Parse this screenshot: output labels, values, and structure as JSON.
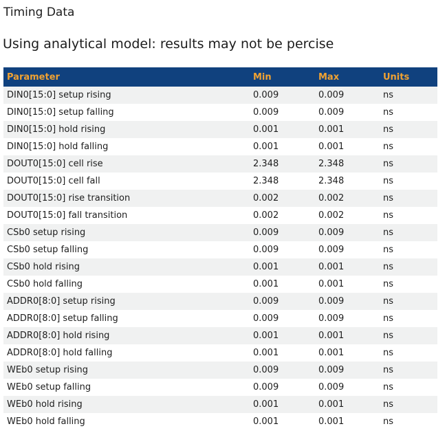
{
  "page": {
    "title": "Timing Data",
    "subtitle": "Using analytical model: results may not be percise"
  },
  "table": {
    "columns": [
      "Parameter",
      "Min",
      "Max",
      "Units"
    ],
    "units_common": "ns",
    "colors": {
      "header_bg": "#10417E",
      "header_text": "#F0A232",
      "row_alt_bg": "#F0F1F1",
      "row_text": "#1D1D1D"
    },
    "rows": [
      {
        "parameter": "DIN0[15:0] setup rising",
        "min": "0.009",
        "max": "0.009",
        "units": "ns"
      },
      {
        "parameter": "DIN0[15:0] setup falling",
        "min": "0.009",
        "max": "0.009",
        "units": "ns"
      },
      {
        "parameter": "DIN0[15:0] hold rising",
        "min": "0.001",
        "max": "0.001",
        "units": "ns"
      },
      {
        "parameter": "DIN0[15:0] hold falling",
        "min": "0.001",
        "max": "0.001",
        "units": "ns"
      },
      {
        "parameter": "DOUT0[15:0] cell rise",
        "min": "2.348",
        "max": "2.348",
        "units": "ns"
      },
      {
        "parameter": "DOUT0[15:0] cell fall",
        "min": "2.348",
        "max": "2.348",
        "units": "ns"
      },
      {
        "parameter": "DOUT0[15:0] rise transition",
        "min": "0.002",
        "max": "0.002",
        "units": "ns"
      },
      {
        "parameter": "DOUT0[15:0] fall transition",
        "min": "0.002",
        "max": "0.002",
        "units": "ns"
      },
      {
        "parameter": "CSb0 setup rising",
        "min": "0.009",
        "max": "0.009",
        "units": "ns"
      },
      {
        "parameter": "CSb0 setup falling",
        "min": "0.009",
        "max": "0.009",
        "units": "ns"
      },
      {
        "parameter": "CSb0 hold rising",
        "min": "0.001",
        "max": "0.001",
        "units": "ns"
      },
      {
        "parameter": "CSb0 hold falling",
        "min": "0.001",
        "max": "0.001",
        "units": "ns"
      },
      {
        "parameter": "ADDR0[8:0] setup rising",
        "min": "0.009",
        "max": "0.009",
        "units": "ns"
      },
      {
        "parameter": "ADDR0[8:0] setup falling",
        "min": "0.009",
        "max": "0.009",
        "units": "ns"
      },
      {
        "parameter": "ADDR0[8:0] hold rising",
        "min": "0.001",
        "max": "0.001",
        "units": "ns"
      },
      {
        "parameter": "ADDR0[8:0] hold falling",
        "min": "0.001",
        "max": "0.001",
        "units": "ns"
      },
      {
        "parameter": "WEb0 setup rising",
        "min": "0.009",
        "max": "0.009",
        "units": "ns"
      },
      {
        "parameter": "WEb0 setup falling",
        "min": "0.009",
        "max": "0.009",
        "units": "ns"
      },
      {
        "parameter": "WEb0 hold rising",
        "min": "0.001",
        "max": "0.001",
        "units": "ns"
      },
      {
        "parameter": "WEb0 hold falling",
        "min": "0.001",
        "max": "0.001",
        "units": "ns"
      }
    ]
  }
}
